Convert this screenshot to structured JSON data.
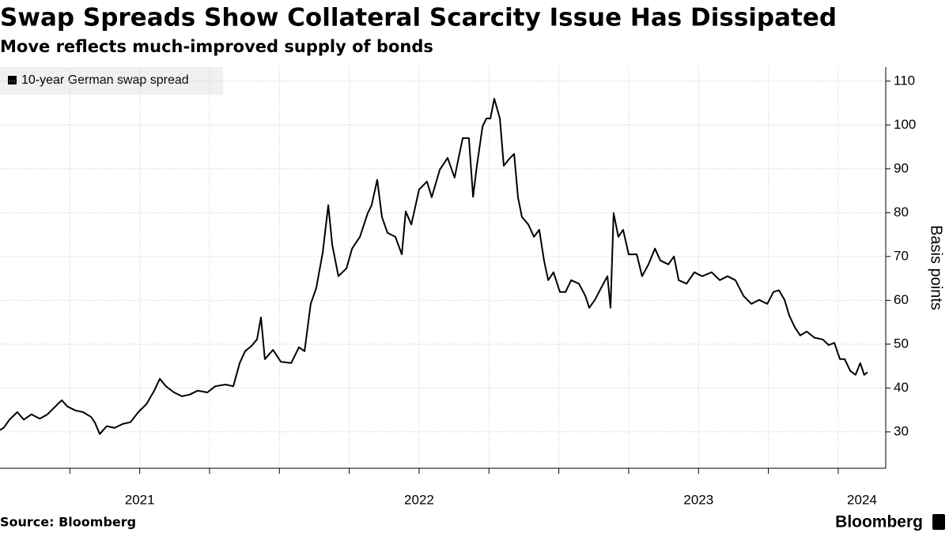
{
  "chart_data": {
    "type": "line",
    "title": "Swap Spreads Show Collateral Scarcity Issue Has Dissipated",
    "subtitle": "Move reflects much-improved supply of bonds",
    "y_label": "Basis points",
    "source": "Source: Bloomberg",
    "logo": "Bloomberg",
    "x": [
      2021.0,
      2021.014,
      2021.034,
      2021.062,
      2021.085,
      2021.113,
      2021.142,
      2021.17,
      2021.198,
      2021.221,
      2021.241,
      2021.269,
      2021.297,
      2021.326,
      2021.34,
      2021.357,
      2021.382,
      2021.41,
      2021.439,
      2021.467,
      2021.495,
      2021.524,
      2021.552,
      2021.572,
      2021.594,
      2021.623,
      2021.651,
      2021.679,
      2021.708,
      2021.742,
      2021.77,
      2021.807,
      2021.835,
      2021.858,
      2021.877,
      2021.9,
      2021.92,
      2021.934,
      2021.948,
      2021.977,
      2022.005,
      2022.042,
      2022.07,
      2022.09,
      2022.112,
      2022.132,
      2022.155,
      2022.175,
      2022.189,
      2022.211,
      2022.24,
      2022.26,
      2022.288,
      2022.316,
      2022.33,
      2022.35,
      2022.367,
      2022.387,
      2022.415,
      2022.438,
      2022.452,
      2022.472,
      2022.5,
      2022.528,
      2022.545,
      2022.574,
      2022.602,
      2022.627,
      2022.656,
      2022.678,
      2022.693,
      2022.707,
      2022.727,
      2022.741,
      2022.755,
      2022.769,
      2022.789,
      2022.803,
      2022.826,
      2022.84,
      2022.854,
      2022.868,
      2022.891,
      2022.911,
      2022.93,
      2022.947,
      2022.962,
      2022.981,
      2023.004,
      2023.024,
      2023.044,
      2023.072,
      2023.095,
      2023.109,
      2023.129,
      2023.151,
      2023.174,
      2023.185,
      2023.196,
      2023.213,
      2023.23,
      2023.25,
      2023.279,
      2023.298,
      2023.321,
      2023.344,
      2023.363,
      2023.392,
      2023.412,
      2023.429,
      2023.457,
      2023.485,
      2023.513,
      2023.547,
      2023.576,
      2023.604,
      2023.632,
      2023.661,
      2023.689,
      2023.717,
      2023.746,
      2023.768,
      2023.788,
      2023.808,
      2023.825,
      2023.845,
      2023.864,
      2023.887,
      2023.915,
      2023.944,
      2023.966,
      2023.986,
      2024.006,
      2024.023,
      2024.043,
      2024.062,
      2024.079,
      2024.093,
      2024.105
    ],
    "series": [
      {
        "name": "10-year German swap spread",
        "color": "#000000",
        "values": [
          30.4,
          31,
          32.8,
          34.5,
          32.8,
          34,
          33,
          34,
          35.8,
          37.2,
          35.8,
          34.9,
          34.5,
          33.4,
          32.1,
          29.5,
          31.3,
          30.9,
          31.8,
          32.2,
          34.5,
          36.3,
          39.4,
          42.1,
          40.4,
          39,
          38.1,
          38.5,
          39.4,
          39,
          40.4,
          40.8,
          40.4,
          45.7,
          48.4,
          49.6,
          51.1,
          56.1,
          46.6,
          48.7,
          46,
          45.7,
          49.3,
          48.4,
          59.2,
          62.8,
          70.9,
          81.7,
          72.7,
          65.5,
          67.3,
          71.8,
          74.5,
          79.9,
          81.7,
          87.5,
          79,
          75.4,
          74.5,
          70.5,
          80.3,
          77.3,
          85.3,
          87.1,
          83.5,
          89.8,
          92.5,
          88,
          97,
          97,
          83.6,
          90.8,
          99.7,
          101.5,
          101.5,
          106,
          101.5,
          90.7,
          92.5,
          93.4,
          83.5,
          79,
          77.3,
          74.5,
          76.1,
          69.1,
          64.6,
          66.4,
          61.9,
          61.9,
          64.6,
          63.8,
          61,
          58.3,
          60.1,
          62.8,
          65.5,
          58.3,
          79.9,
          74.5,
          76.1,
          70.5,
          70.5,
          65.5,
          68.2,
          71.8,
          69.1,
          68.2,
          70,
          64.6,
          63.8,
          66.4,
          65.5,
          66.4,
          64.6,
          65.5,
          64.6,
          61,
          59.2,
          60.1,
          59.2,
          61.9,
          62.3,
          60.1,
          56.5,
          53.8,
          52,
          52.9,
          51.5,
          51.1,
          49.8,
          50.3,
          46.6,
          46.6,
          43.9,
          43,
          45.7,
          43,
          43.6
        ]
      }
    ],
    "xlim": [
      2021.0,
      2024.17
    ],
    "xgrid": [
      2021.25,
      2021.5,
      2021.75,
      2022.0,
      2022.25,
      2022.5,
      2022.75,
      2023.0,
      2023.25,
      2023.5,
      2023.75,
      2024.0
    ],
    "xticks": [
      {
        "value": 2021.5,
        "label": "2021"
      },
      {
        "value": 2022.5,
        "label": "2022"
      },
      {
        "value": 2023.5,
        "label": "2023"
      },
      {
        "value": 2024.085,
        "label": "2024"
      }
    ],
    "ylim": [
      21.7,
      113.2
    ],
    "yticks": [
      30,
      40,
      50,
      60,
      70,
      80,
      90,
      100,
      110
    ],
    "grid": true,
    "legend": "top-left"
  }
}
